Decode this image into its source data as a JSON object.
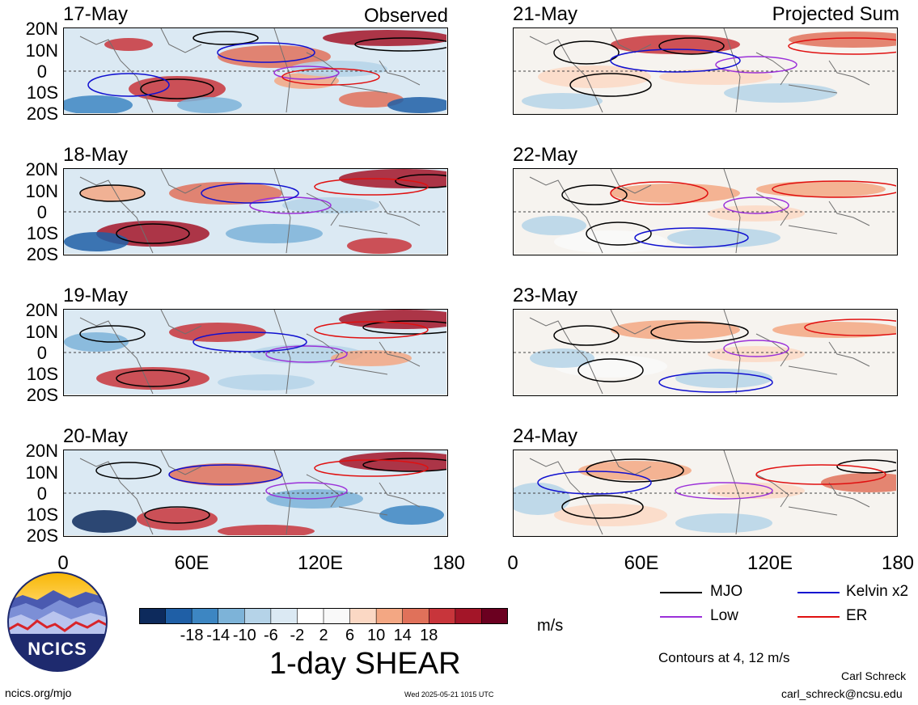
{
  "left_column": {
    "corner_label": "Observed",
    "dates": [
      "17-May",
      "18-May",
      "19-May",
      "20-May"
    ]
  },
  "right_column": {
    "corner_label": "Projected Sum",
    "dates": [
      "21-May",
      "22-May",
      "23-May",
      "24-May"
    ]
  },
  "lat_labels": [
    "20N",
    "10N",
    "0",
    "10S",
    "20S"
  ],
  "lon_labels": [
    "0",
    "60E",
    "120E",
    "180"
  ],
  "colorbar": {
    "colors": [
      "#0d2a5c",
      "#1f5fa6",
      "#3d86c2",
      "#7db3d8",
      "#b5d3e8",
      "#dbe9f3",
      "#ffffff",
      "#f9f9f9",
      "#fbd8c4",
      "#f3a783",
      "#e0715a",
      "#c8353b",
      "#a31528",
      "#6b0020"
    ],
    "tick_labels": [
      "-18",
      "-14",
      "-10",
      "-6",
      "-2",
      "2",
      "6",
      "10",
      "14",
      "18"
    ],
    "units": "m/s",
    "title": "1-day SHEAR"
  },
  "legend": {
    "items": [
      {
        "label": "MJO",
        "color": "#000000"
      },
      {
        "label": "Kelvin x2",
        "color": "#1010d0"
      },
      {
        "label": "Low",
        "color": "#9b30d9"
      },
      {
        "label": "ER",
        "color": "#e01010"
      }
    ],
    "note": "Contours at 4, 12 m/s"
  },
  "logo": {
    "text": "NCICS"
  },
  "footer": {
    "url": "ncics.org/mjo",
    "timestamp": "Wed 2025-05-21 1015 UTC",
    "author": "Carl Schreck",
    "email": "carl_schreck@ncsu.edu"
  }
}
